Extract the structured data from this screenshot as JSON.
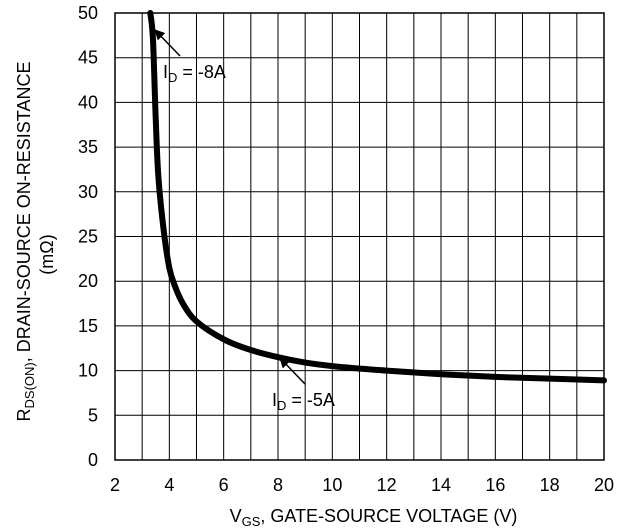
{
  "chart_data": {
    "type": "line",
    "x_axis": {
      "label_main": "V",
      "label_sub": "GS",
      "label_rest": ", GATE-SOURCE VOLTAGE (V)",
      "range": [
        2,
        20
      ],
      "ticks": [
        2,
        4,
        6,
        8,
        10,
        12,
        14,
        16,
        18,
        20
      ]
    },
    "y_axis": {
      "label_main": "R",
      "label_sub": "DS(ON)",
      "label_rest": ", DRAIN-SOURCE ON-RESISTANCE",
      "label_unit": "(mΩ)",
      "range": [
        0,
        50
      ],
      "ticks": [
        0,
        5,
        10,
        15,
        20,
        25,
        30,
        35,
        40,
        45,
        50
      ]
    },
    "grid": true,
    "series": [
      {
        "x": [
          3.3,
          3.4,
          3.5,
          3.6,
          3.8,
          4.0,
          4.2,
          4.5,
          5.0,
          6.0,
          7.0,
          8.0,
          9.0,
          10.0,
          12.0,
          14.0,
          16.0,
          18.0,
          20.0
        ],
        "y": [
          50,
          47,
          38,
          31.5,
          25.5,
          21.5,
          19.5,
          17.5,
          15.5,
          13.5,
          12.3,
          11.5,
          10.9,
          10.5,
          10.0,
          9.6,
          9.3,
          9.1,
          8.9
        ]
      }
    ],
    "annotations": [
      {
        "main": "I",
        "sub": "D",
        "rest": " = -8A"
      },
      {
        "main": "I",
        "sub": "D",
        "rest": " = -5A"
      }
    ]
  }
}
